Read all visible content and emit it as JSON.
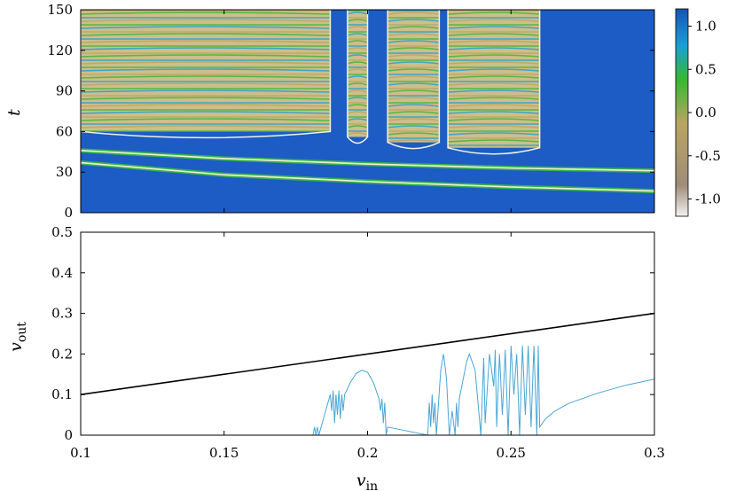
{
  "chart_data": [
    {
      "type": "heatmap",
      "title": "",
      "xlabel": "",
      "ylabel": "t",
      "xlim": [
        0.1,
        0.3
      ],
      "ylim": [
        0,
        150
      ],
      "yticks": [
        "0",
        "30",
        "60",
        "90",
        "120",
        "150"
      ],
      "colorbar": {
        "range": [
          -1.2,
          1.2
        ],
        "ticks": [
          "1.0",
          "0.5",
          "0.0",
          "-0.5",
          "-1.0"
        ],
        "tick_values": [
          1.0,
          0.5,
          0.0,
          -0.5,
          -1.0
        ],
        "colormap": [
          "#f2f2f2",
          "#a08c78",
          "#b9a562",
          "#35b82f",
          "#19a0d5",
          "#1554b8"
        ]
      },
      "background_color": "#1c5cc4",
      "bounce_regions": [
        [
          0.1,
          0.187
        ],
        [
          0.193,
          0.2
        ],
        [
          0.207,
          0.225
        ],
        [
          0.228,
          0.26
        ]
      ]
    },
    {
      "type": "line",
      "title": "",
      "xlabel": "v_in",
      "ylabel": "v_out",
      "xlim": [
        0.1,
        0.3
      ],
      "ylim": [
        0,
        0.5
      ],
      "xticks": [
        "0.1",
        "0.15",
        "0.2",
        "0.25",
        "0.3"
      ],
      "yticks": [
        "0",
        "0.1",
        "0.2",
        "0.3",
        "0.4",
        "0.5"
      ],
      "series": [
        {
          "color": "#000000",
          "x": [
            0.1,
            0.3
          ],
          "y": [
            0.1,
            0.3
          ]
        },
        {
          "color": "#4aa6d6",
          "x": [
            0.181,
            0.1815,
            0.182,
            0.1825,
            0.183,
            0.187,
            0.1875,
            0.188,
            0.1885,
            0.189,
            0.1895,
            0.19,
            0.1905,
            0.191,
            0.1915,
            0.192,
            0.194,
            0.196,
            0.198,
            0.2,
            0.202,
            0.204,
            0.2045,
            0.205,
            0.2055,
            0.206,
            0.2065,
            0.207,
            0.221,
            0.2215,
            0.222,
            0.2225,
            0.223,
            0.2235,
            0.224,
            0.2255,
            0.2265,
            0.2275,
            0.2285,
            0.2295,
            0.2305,
            0.231,
            0.2315,
            0.232,
            0.2345,
            0.2355,
            0.2375,
            0.2395,
            0.2405,
            0.241,
            0.2425,
            0.244,
            0.2445,
            0.245,
            0.246,
            0.247,
            0.248,
            0.249,
            0.25,
            0.251,
            0.252,
            0.253,
            0.254,
            0.255,
            0.256,
            0.257,
            0.258,
            0.259,
            0.2595,
            0.26,
            0.262,
            0.265,
            0.27,
            0.28,
            0.29,
            0.3
          ],
          "y": [
            0.0,
            0.02,
            0.0,
            0.02,
            0.0,
            0.1,
            0.06,
            0.11,
            0.03,
            0.1,
            0.05,
            0.11,
            0.04,
            0.1,
            0.06,
            0.1,
            0.13,
            0.152,
            0.16,
            0.155,
            0.13,
            0.09,
            0.06,
            0.09,
            0.03,
            0.08,
            0.0,
            0.02,
            0.0,
            0.08,
            0.02,
            0.1,
            0.03,
            0.08,
            0.0,
            0.16,
            0.2,
            0.14,
            0.0,
            0.06,
            0.0,
            0.08,
            0.02,
            0.09,
            0.18,
            0.2,
            0.16,
            0.0,
            0.19,
            0.03,
            0.2,
            0.12,
            0.21,
            0.02,
            0.2,
            0.05,
            0.21,
            0.0,
            0.22,
            0.1,
            0.2,
            0.0,
            0.22,
            0.05,
            0.22,
            0.02,
            0.22,
            0.0,
            0.22,
            0.02,
            0.04,
            0.058,
            0.078,
            0.103,
            0.123,
            0.138
          ]
        }
      ]
    }
  ]
}
